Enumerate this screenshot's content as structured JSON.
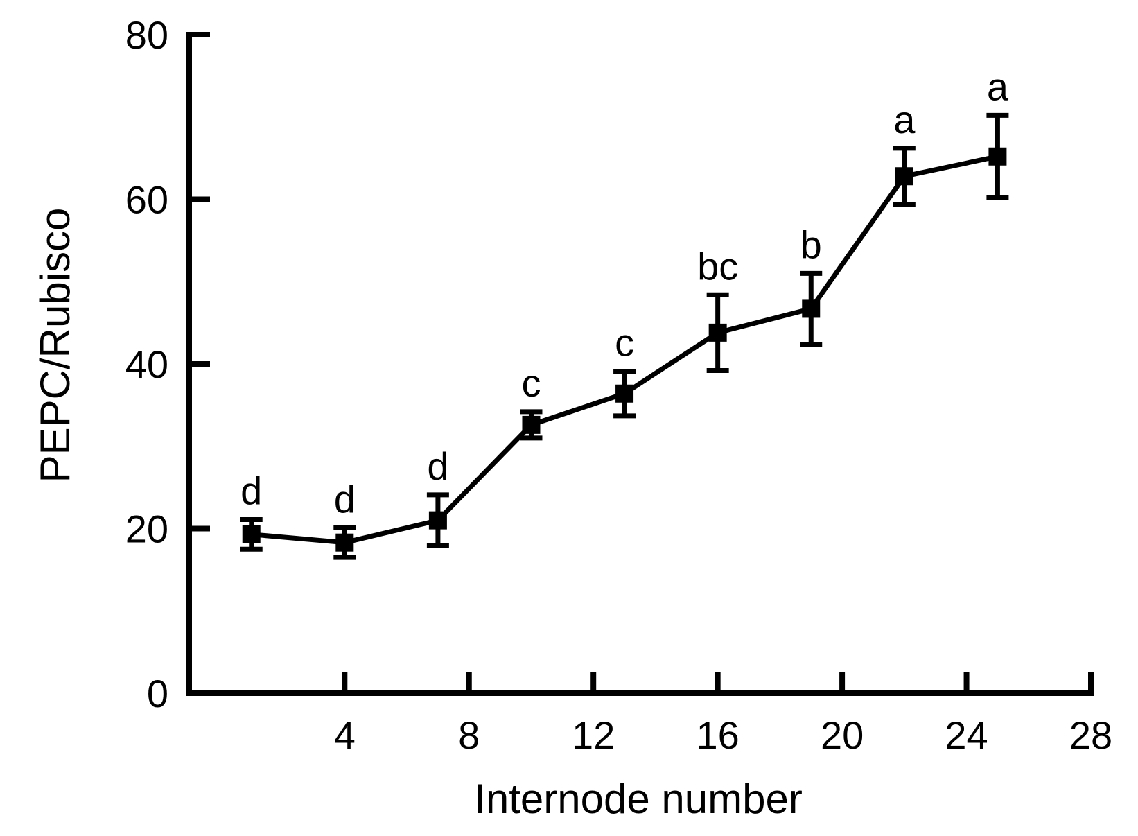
{
  "colors": {
    "line": "#000000",
    "marker": "#000000",
    "background": "#ffffff"
  },
  "chart_data": {
    "type": "line",
    "title": "",
    "xlabel": "Internode number",
    "ylabel": "PEPC/Rubisco",
    "xlim": [
      -1,
      28
    ],
    "ylim": [
      0,
      80
    ],
    "xticks": [
      4,
      8,
      12,
      16,
      20,
      24,
      28
    ],
    "yticks": [
      0,
      20,
      40,
      60,
      80
    ],
    "grid": false,
    "legend": "none",
    "series": [
      {
        "x": [
          1,
          4,
          7,
          10,
          13,
          16,
          19,
          22,
          25
        ],
        "y": [
          19.3,
          18.3,
          21.0,
          32.6,
          36.4,
          43.8,
          46.7,
          62.8,
          65.2
        ],
        "error": [
          1.8,
          1.8,
          3.1,
          1.6,
          2.7,
          4.6,
          4.3,
          3.4,
          5.0
        ],
        "labels": [
          "d",
          "d",
          "d",
          "c",
          "c",
          "bc",
          "b",
          "a",
          "a"
        ]
      }
    ]
  }
}
